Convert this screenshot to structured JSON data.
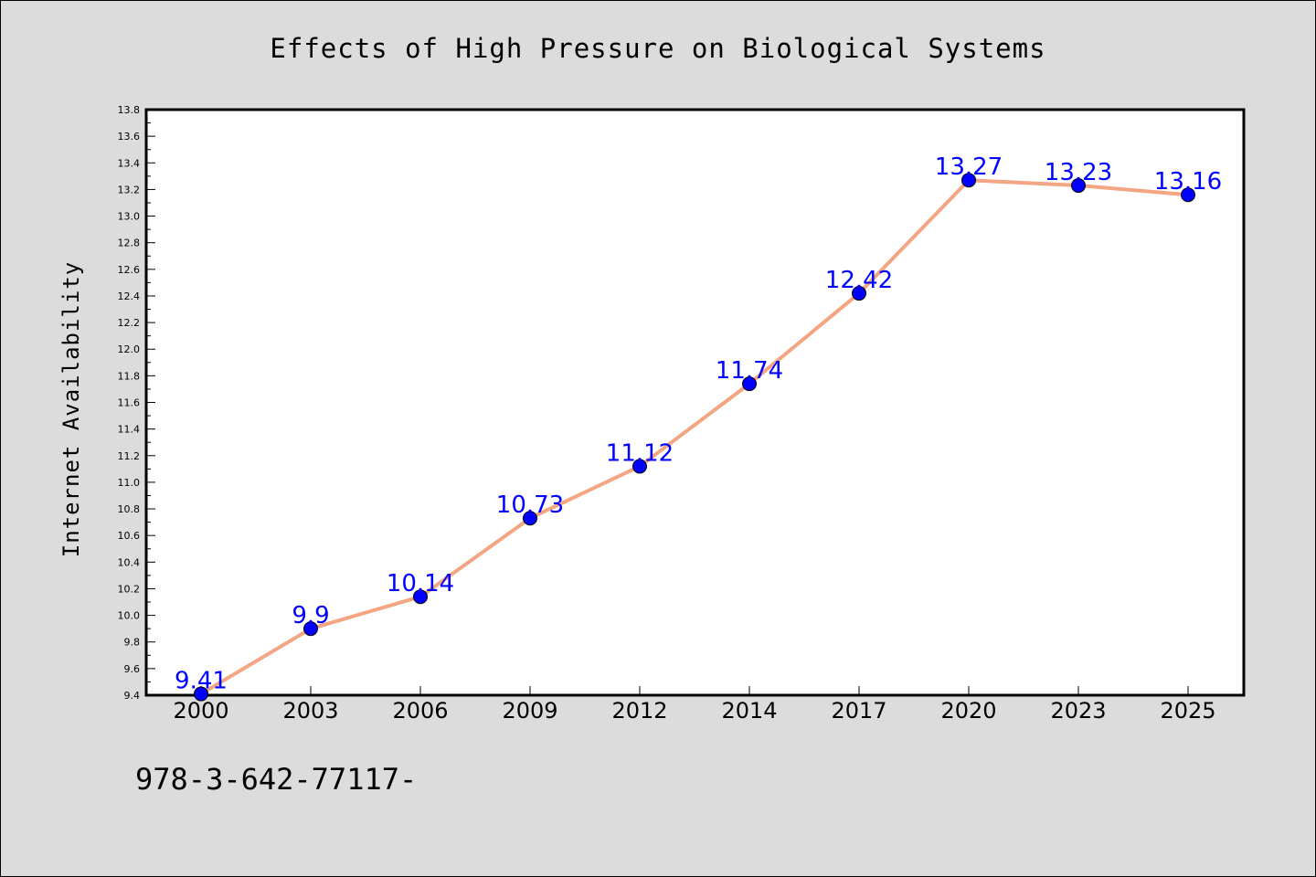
{
  "chart_data": {
    "type": "line",
    "title": "Effects of High Pressure on Biological Systems",
    "xlabel": "",
    "ylabel": "Internet Availability",
    "categories": [
      "2000",
      "2003",
      "2006",
      "2009",
      "2012",
      "2014",
      "2017",
      "2020",
      "2023",
      "2025"
    ],
    "series": [
      {
        "values": [
          9.41,
          9.9,
          10.14,
          10.73,
          11.12,
          11.74,
          12.42,
          13.27,
          13.23,
          13.16
        ]
      }
    ],
    "data_labels": [
      "9.41",
      "9.9",
      "10.14",
      "10.73",
      "11.12",
      "11.74",
      "12.42",
      "13.27",
      "13.23",
      "13.16"
    ],
    "ylim": [
      9.4,
      13.8
    ],
    "yticks": [
      "9.4",
      "9.6",
      "9.8",
      "10.0",
      "10.2",
      "10.4",
      "10.6",
      "10.8",
      "11.0",
      "11.2",
      "11.4",
      "11.6",
      "11.8",
      "12.0",
      "12.2",
      "12.4",
      "12.6",
      "12.8",
      "13.0",
      "13.2",
      "13.4",
      "13.6",
      "13.8"
    ],
    "grid": false,
    "legend": "none",
    "colors": {
      "line": "#f4a582",
      "marker": "#0000ff",
      "label": "#0000ff"
    }
  },
  "footer_note": "978-3-642-77117-"
}
